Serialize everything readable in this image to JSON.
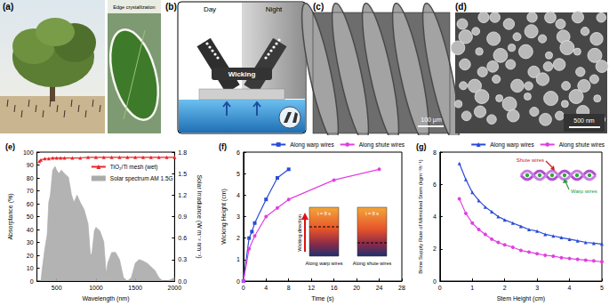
{
  "image_panels": [
    {
      "label": "(a)",
      "annotation": "Edge crystallization"
    },
    {
      "label": "(b)",
      "texts": [
        "Day",
        "Night",
        "Wicking"
      ]
    },
    {
      "label": "(c)",
      "scale_bar": "100 µm"
    },
    {
      "label": "(d)",
      "scale_bar": "500 nm"
    }
  ],
  "chart_data": [
    {
      "label": "(e)",
      "type": "line",
      "x_label": "Wavelength (nm)",
      "y_label": "Absorptance (%)",
      "y2_label": "Solar Irradiance (W m⁻² nm⁻¹)",
      "xlim": [
        250,
        2000
      ],
      "xticks": [
        500,
        1000,
        1500,
        2000
      ],
      "ylim": [
        0,
        100
      ],
      "yticks": [
        0,
        10,
        20,
        30,
        40,
        50,
        60,
        70,
        80,
        90,
        100
      ],
      "y2lim": [
        0,
        1.8
      ],
      "y2ticks": [
        {
          "value": 0,
          "label": "0.0"
        },
        0.3,
        0.6,
        0.9,
        1.2,
        1.5,
        1.8
      ],
      "grid": false,
      "legend": "upper right",
      "series": [
        {
          "name": "TiO₂/Ti mesh (wet)",
          "type": "line",
          "color": "#e8262a",
          "marker": "triangle",
          "x": [
            280,
            300,
            350,
            400,
            450,
            500,
            550,
            600,
            700,
            800,
            900,
            1000,
            1100,
            1200,
            1300,
            1400,
            1500,
            1600,
            1700,
            1800,
            1900,
            2000
          ],
          "values": [
            93,
            94,
            95,
            95,
            95.5,
            95.5,
            95.5,
            95.5,
            95.5,
            95.5,
            96,
            96,
            96,
            96,
            96,
            96,
            96,
            96,
            96,
            96,
            96,
            96
          ]
        },
        {
          "name": "Solar spectrum AM 1.5G",
          "type": "area",
          "axis": "y2",
          "color": "#ababab",
          "x": [
            280,
            300,
            320,
            350,
            380,
            400,
            420,
            450,
            480,
            500,
            530,
            560,
            600,
            650,
            690,
            720,
            760,
            800,
            850,
            900,
            930,
            950,
            980,
            1000,
            1050,
            1100,
            1130,
            1150,
            1200,
            1250,
            1300,
            1350,
            1400,
            1450,
            1500,
            1550,
            1600,
            1650,
            1700,
            1750,
            1800,
            1850,
            1900,
            1950,
            2000
          ],
          "values": [
            0,
            0,
            0.2,
            0.45,
            0.65,
            1.1,
            1.2,
            1.55,
            1.6,
            1.55,
            1.5,
            1.55,
            1.5,
            1.45,
            1.2,
            1.1,
            1.2,
            1.1,
            1.0,
            0.8,
            0.35,
            0.4,
            0.7,
            0.75,
            0.7,
            0.55,
            0.1,
            0.25,
            0.4,
            0.4,
            0.3,
            0.05,
            0,
            0.05,
            0.25,
            0.3,
            0.28,
            0.25,
            0.2,
            0.15,
            0.05,
            0,
            0,
            0.02,
            0.05
          ]
        }
      ]
    },
    {
      "label": "(f)",
      "type": "line",
      "x_label": "Time (s)",
      "y_label": "Wicking Height (cm)",
      "xlim": [
        0,
        28
      ],
      "xticks": [
        0,
        4,
        8,
        12,
        16,
        20,
        24,
        28
      ],
      "ylim": [
        0,
        6
      ],
      "yticks": [
        0,
        1,
        2,
        3,
        4,
        5,
        6
      ],
      "grid": false,
      "legend": "top",
      "series": [
        {
          "name": "Along warp wires",
          "type": "line",
          "color": "#2a4bd7",
          "marker": "square",
          "x": [
            0,
            1,
            1.5,
            2,
            4,
            6,
            8
          ],
          "values": [
            0,
            2.0,
            2.3,
            2.7,
            3.8,
            4.8,
            5.2
          ]
        },
        {
          "name": "Along shute wires",
          "type": "line",
          "color": "#e040e0",
          "marker": "circle",
          "x": [
            0,
            1,
            2,
            4,
            6,
            8,
            16,
            24
          ],
          "values": [
            0,
            1.5,
            2.1,
            3.0,
            3.4,
            3.8,
            4.7,
            5.2
          ]
        }
      ],
      "annotations": {
        "inset_time": "t = 8 s",
        "arrow_text": "Wicking direction",
        "inset_labels": [
          "Along warp wires",
          "Along shute wires"
        ]
      }
    },
    {
      "label": "(g)",
      "type": "line",
      "x_label": "Stem Height (cm)",
      "y_label": "Brine Supply Rate of Mimicked Stem (kgm⁻²h⁻¹)",
      "xlim": [
        0,
        5
      ],
      "xticks": [
        0,
        1,
        2,
        3,
        4,
        5
      ],
      "ylim": [
        0,
        8
      ],
      "yticks": [
        0,
        2,
        4,
        6,
        8
      ],
      "grid": false,
      "legend": "top",
      "series": [
        {
          "name": "Along warp wires",
          "type": "line",
          "color": "#2a4bd7",
          "marker": "triangle",
          "x": [
            0.6,
            0.8,
            1,
            1.2,
            1.4,
            1.6,
            1.8,
            2,
            2.25,
            2.5,
            2.75,
            3,
            3.25,
            3.5,
            3.75,
            4,
            4.25,
            4.5,
            4.75,
            5
          ],
          "values": [
            7.3,
            6.3,
            5.5,
            5.0,
            4.6,
            4.3,
            4.0,
            3.8,
            3.6,
            3.4,
            3.2,
            3.1,
            2.9,
            2.8,
            2.7,
            2.6,
            2.5,
            2.4,
            2.35,
            2.3
          ]
        },
        {
          "name": "Along shute wires",
          "type": "line",
          "color": "#e040e0",
          "marker": "circle",
          "x": [
            0.6,
            0.8,
            1,
            1.2,
            1.4,
            1.6,
            1.8,
            2,
            2.25,
            2.5,
            2.75,
            3,
            3.25,
            3.5,
            3.75,
            4,
            4.25,
            4.5,
            4.75,
            5
          ],
          "values": [
            5.1,
            4.2,
            3.6,
            3.2,
            2.9,
            2.6,
            2.4,
            2.25,
            2.1,
            1.9,
            1.8,
            1.7,
            1.6,
            1.55,
            1.45,
            1.4,
            1.35,
            1.3,
            1.25,
            1.2
          ]
        }
      ],
      "annotations": {
        "inset_labels": [
          "Shute wires",
          "Warp wires"
        ]
      }
    }
  ]
}
